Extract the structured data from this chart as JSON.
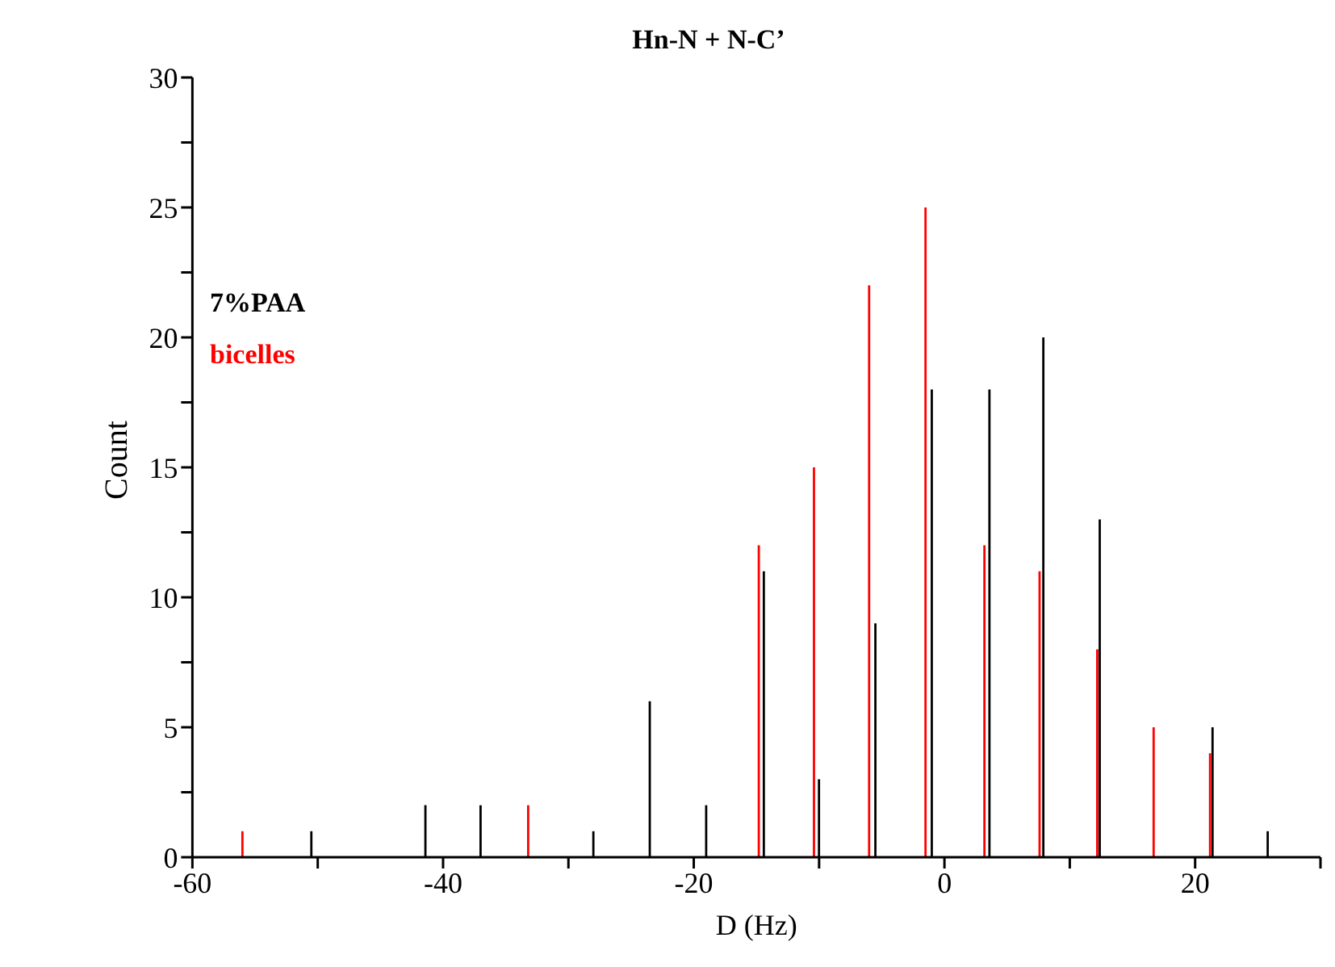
{
  "chart_data": {
    "type": "bar",
    "title": "Hn-N + N-C’",
    "xlabel": "D (Hz)",
    "ylabel": "Count",
    "series": [
      {
        "name": "7%PAA",
        "color": "#000000",
        "x": [
          -50.5,
          -41.4,
          -37,
          -28,
          -23.5,
          -19,
          -14.4,
          -10,
          -5.5,
          -1,
          3.6,
          7.9,
          12.4,
          21.4,
          25.8
        ],
        "values": [
          1,
          2,
          2,
          1,
          6,
          2,
          11,
          3,
          9,
          18,
          18,
          20,
          13,
          5,
          1
        ]
      },
      {
        "name": "bicelles",
        "color": "#ff0000",
        "x": [
          -56,
          -33.2,
          -14.8,
          -10.4,
          -6,
          -1.5,
          3.2,
          7.6,
          12.2,
          16.7,
          21.2
        ],
        "values": [
          1,
          2,
          12,
          15,
          22,
          25,
          12,
          11,
          8,
          5,
          4
        ]
      }
    ],
    "xlim": [
      -60,
      30
    ],
    "xticks": [
      -60,
      {
        "value": -50,
        "label": null
      },
      -40,
      {
        "value": -30,
        "label": null
      },
      -20,
      {
        "value": -10,
        "label": null
      },
      0,
      {
        "value": 10,
        "label": null
      },
      20,
      {
        "value": 30,
        "label": null
      }
    ],
    "ylim": [
      0,
      30
    ],
    "yticks": [
      0,
      {
        "value": 2.5,
        "label": null
      },
      5,
      {
        "value": 7.5,
        "label": null
      },
      10,
      {
        "value": 12.5,
        "label": null
      },
      15,
      {
        "value": 17.5,
        "label": null
      },
      20,
      {
        "value": 22.5,
        "label": null
      },
      25,
      {
        "value": 27.5,
        "label": null
      },
      30
    ],
    "legend": "top left"
  }
}
